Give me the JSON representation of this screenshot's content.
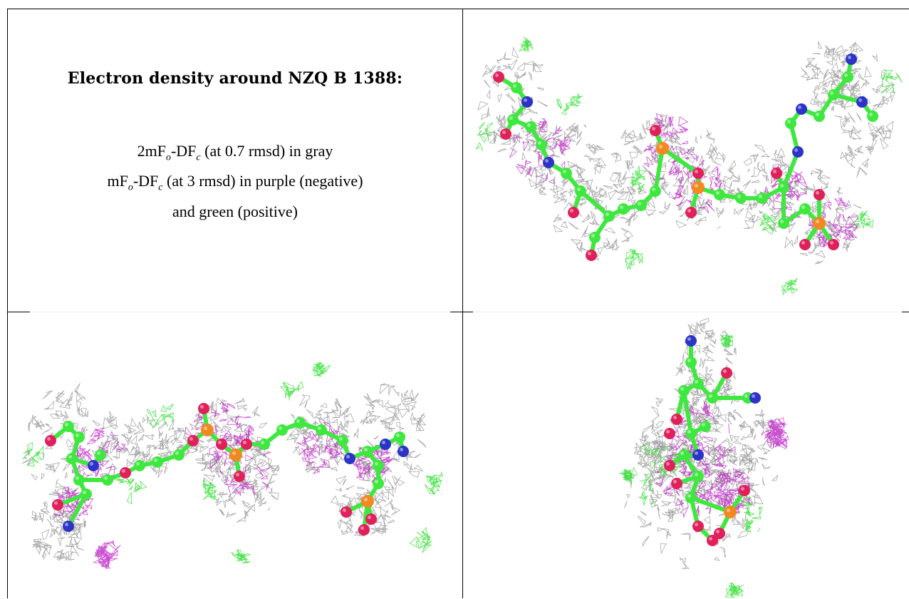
{
  "caption": {
    "title": "Electron density around NZQ B 1388:",
    "line1_pre": "2mF",
    "line1_sub1": "o",
    "line1_mid": "-DF",
    "line1_sub2": "c",
    "line1_post": " (at 0.7 rmsd) in gray",
    "line2_pre": "mF",
    "line2_sub1": "o",
    "line2_mid": "-DF",
    "line2_sub2": "c",
    "line2_post": " (at 3 rmsd) in purple (negative)",
    "line3": "and green (positive)"
  },
  "colors": {
    "mesh_gray": "#9a9a9a",
    "mesh_purple": "#c030c8",
    "mesh_green": "#30e030",
    "carbon": "#3ee83e",
    "oxygen": "#e0205a",
    "nitrogen": "#2c34c8",
    "phosphorus": "#f08a20"
  },
  "views": [
    "view-top-right",
    "view-bottom-left",
    "view-bottom-right"
  ]
}
